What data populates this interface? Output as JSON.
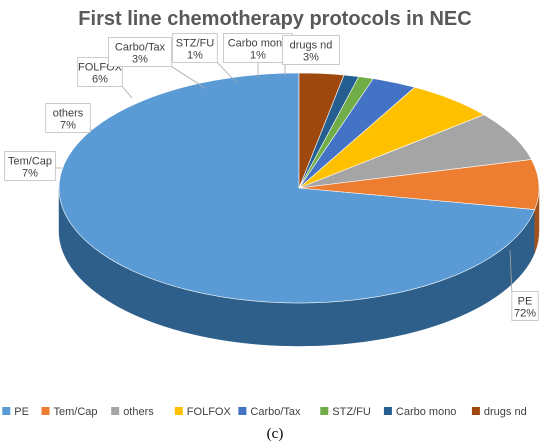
{
  "chart_data": {
    "type": "pie",
    "title": "First line chemotherapy protocols in NEC",
    "caption": "(c)",
    "legend_position": "bottom",
    "series": [
      {
        "name": "PE",
        "percent_label": "72%",
        "value": 72,
        "color": "#5b9bd5",
        "side": "#2e5f8a",
        "label_lines": [
          "PE",
          "72%"
        ]
      },
      {
        "name": "Tem/Cap",
        "percent_label": "7%",
        "value": 7,
        "color": "#ed7d31",
        "side": "#a4521c",
        "label_lines": [
          "Tem/Cap",
          "7%"
        ]
      },
      {
        "name": "others",
        "percent_label": "7%",
        "value": 7,
        "color": "#a5a5a5",
        "side": "#6e6e6e",
        "label_lines": [
          "others",
          "7%"
        ]
      },
      {
        "name": "FOLFOX",
        "percent_label": "6%",
        "value": 6,
        "color": "#ffc000",
        "side": "#b58800",
        "label_lines": [
          "FOLFOX",
          "6%"
        ]
      },
      {
        "name": "Carbo/Tax",
        "percent_label": "3%",
        "value": 3,
        "color": "#4472c4",
        "side": "#2b4a80",
        "label_lines": [
          "Carbo/Tax",
          "3%"
        ]
      },
      {
        "name": "STZ/FU",
        "percent_label": "1%",
        "value": 1,
        "color": "#70ad47",
        "side": "#4a7530",
        "label_lines": [
          "STZ/FU",
          "1%"
        ]
      },
      {
        "name": "Carbo mono",
        "percent_label": "1%",
        "value": 1,
        "color": "#255e91",
        "side": "#173c5c",
        "label_lines": [
          "Carbo mono",
          "1%"
        ]
      },
      {
        "name": "drugs nd",
        "percent_label": "3%",
        "value": 3,
        "color": "#9e480e",
        "side": "#652d08",
        "label_lines": [
          "drugs nd",
          "3%"
        ]
      }
    ]
  }
}
